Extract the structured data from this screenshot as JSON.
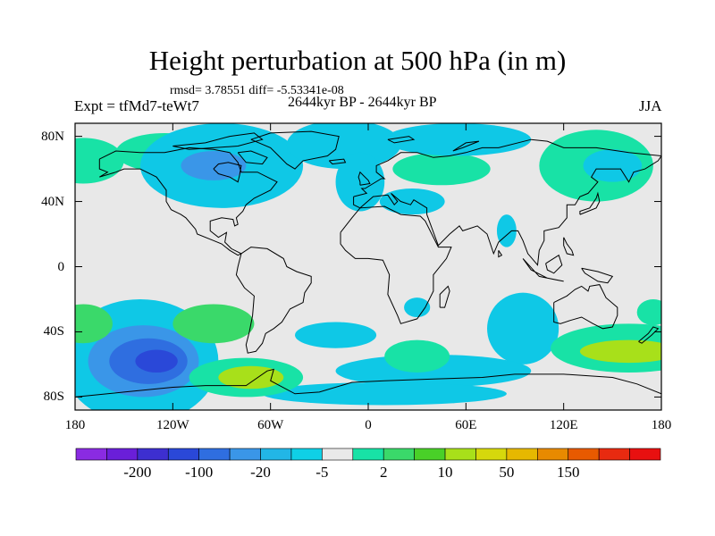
{
  "title": "Height perturbation at 500 hPa (in m)",
  "stats": "rmsd= 3.78551 diff= -5.53341e-08",
  "experiment": "Expt = tfMd7-teWt7",
  "period": "2644kyr BP - 2644kyr BP",
  "season": "JJA",
  "lat_labels": [
    {
      "text": "80N",
      "lat": 80
    },
    {
      "text": "40N",
      "lat": 40
    },
    {
      "text": "0",
      "lat": 0
    },
    {
      "text": "40S",
      "lat": -40
    },
    {
      "text": "80S",
      "lat": -80
    }
  ],
  "lon_labels": [
    {
      "text": "180",
      "lon": -180
    },
    {
      "text": "120W",
      "lon": -120
    },
    {
      "text": "60W",
      "lon": -60
    },
    {
      "text": "0",
      "lon": 0
    },
    {
      "text": "60E",
      "lon": 60
    },
    {
      "text": "120E",
      "lon": 120
    },
    {
      "text": "180",
      "lon": 180
    }
  ],
  "colorbar": {
    "colors": [
      "#8a2be2",
      "#6a1fd9",
      "#3d2fd0",
      "#2a48d8",
      "#2f6ee0",
      "#3a96e8",
      "#22b6e6",
      "#0fd0e6",
      "#e9e9e9",
      "#18e2a6",
      "#3ad96a",
      "#49d028",
      "#a8e01a",
      "#d6d80c",
      "#e6b800",
      "#e88a00",
      "#e85a00",
      "#e82a10",
      "#e81010"
    ],
    "labels": [
      {
        "text": "-200",
        "boundary": 2
      },
      {
        "text": "-100",
        "boundary": 4
      },
      {
        "text": "-20",
        "boundary": 6
      },
      {
        "text": "-5",
        "boundary": 8
      },
      {
        "text": "2",
        "boundary": 10
      },
      {
        "text": "10",
        "boundary": 12
      },
      {
        "text": "50",
        "boundary": 14
      },
      {
        "text": "150",
        "boundary": 16
      }
    ]
  },
  "fill_colors": {
    "background": "#e8e8e8",
    "cyan": "#0fc8e6",
    "teal": "#18e2a6",
    "green": "#3ad96a",
    "lime": "#a8e01a",
    "blue1": "#3a96e8",
    "blue2": "#2f6ee0",
    "blue3": "#2a48d8",
    "coast": "#000000"
  },
  "anomaly_regions": [
    {
      "name": "green-band-north",
      "level": "teal",
      "lon": -175,
      "lat": 65,
      "rlon": 25,
      "rlat": 14
    },
    {
      "name": "green-east-asia",
      "level": "teal",
      "lon": 140,
      "lat": 62,
      "rlon": 35,
      "rlat": 22
    },
    {
      "name": "green-europe",
      "level": "teal",
      "lon": 45,
      "lat": 60,
      "rlon": 30,
      "rlat": 10
    },
    {
      "name": "green-mid-pacific",
      "level": "teal",
      "lon": -125,
      "lat": 70,
      "rlon": 30,
      "rlat": 12
    },
    {
      "name": "cyan-canada",
      "level": "cyan",
      "lon": -90,
      "lat": 62,
      "rlon": 50,
      "rlat": 26
    },
    {
      "name": "cyan-canada-core",
      "level": "blue1",
      "lon": -95,
      "lat": 62,
      "rlon": 20,
      "rlat": 9
    },
    {
      "name": "cyan-greenland",
      "level": "cyan",
      "lon": -15,
      "lat": 75,
      "rlon": 35,
      "rlat": 15
    },
    {
      "name": "cyan-atlantic",
      "level": "cyan",
      "lon": -5,
      "lat": 52,
      "rlon": 15,
      "rlat": 18
    },
    {
      "name": "cyan-russia",
      "level": "cyan",
      "lon": 55,
      "lat": 78,
      "rlon": 45,
      "rlat": 10
    },
    {
      "name": "cyan-siberia",
      "level": "cyan",
      "lon": 150,
      "lat": 62,
      "rlon": 18,
      "rlat": 10
    },
    {
      "name": "cyan-med",
      "level": "cyan",
      "lon": 27,
      "lat": 40,
      "rlon": 20,
      "rlat": 8
    },
    {
      "name": "cyan-india",
      "level": "cyan",
      "lon": 85,
      "lat": 22,
      "rlon": 6,
      "rlat": 10
    },
    {
      "name": "cyan-south-atlantic",
      "level": "cyan",
      "lon": -20,
      "lat": -42,
      "rlon": 25,
      "rlat": 8
    },
    {
      "name": "cyan-africa-south",
      "level": "cyan",
      "lon": 30,
      "lat": -25,
      "rlon": 8,
      "rlat": 6
    },
    {
      "name": "cyan-indian-ocean",
      "level": "cyan",
      "lon": 95,
      "lat": -38,
      "rlon": 22,
      "rlat": 22
    },
    {
      "name": "cyan-south-band",
      "level": "cyan",
      "lon": 40,
      "lat": -64,
      "rlon": 60,
      "rlat": 10
    },
    {
      "name": "cyan-antarctic",
      "level": "cyan",
      "lon": 10,
      "lat": -78,
      "rlon": 75,
      "rlat": 7
    },
    {
      "name": "cyan-west-pacific",
      "level": "cyan",
      "lon": -140,
      "lat": -58,
      "rlon": 48,
      "rlat": 38
    },
    {
      "name": "blue-pacific-1",
      "level": "blue1",
      "lon": -138,
      "lat": -58,
      "rlon": 34,
      "rlat": 22
    },
    {
      "name": "blue-pacific-2",
      "level": "blue2",
      "lon": -135,
      "lat": -58,
      "rlon": 24,
      "rlat": 14
    },
    {
      "name": "blue-pacific-3",
      "level": "blue3",
      "lon": -130,
      "lat": -58,
      "rlon": 13,
      "rlat": 7
    },
    {
      "name": "green-nz",
      "level": "green",
      "lon": -175,
      "lat": -35,
      "rlon": 18,
      "rlat": 12
    },
    {
      "name": "green-sw-pacific",
      "level": "green",
      "lon": -95,
      "lat": -35,
      "rlon": 25,
      "rlat": 12
    },
    {
      "name": "green-south-america",
      "level": "teal",
      "lon": -75,
      "lat": -68,
      "rlon": 35,
      "rlat": 12
    },
    {
      "name": "green-south-america-core",
      "level": "lime",
      "lon": -72,
      "lat": -68,
      "rlon": 20,
      "rlat": 7
    },
    {
      "name": "green-south-indian",
      "level": "teal",
      "lon": 160,
      "lat": -50,
      "rlon": 48,
      "rlat": 15
    },
    {
      "name": "green-south-indian-core",
      "level": "lime",
      "lon": 160,
      "lat": -52,
      "rlon": 30,
      "rlat": 7
    },
    {
      "name": "green-southeast-pacific",
      "level": "teal",
      "lon": 175,
      "lat": -28,
      "rlon": 10,
      "rlat": 8
    },
    {
      "name": "green-north-africa",
      "level": "teal",
      "lon": 30,
      "lat": -55,
      "rlon": 20,
      "rlat": 10
    }
  ],
  "coastlines": [
    {
      "name": "north-america",
      "lonlat": [
        -165,
        66,
        -155,
        71,
        -140,
        70,
        -125,
        70,
        -110,
        73,
        -95,
        72,
        -85,
        70,
        -80,
        64,
        -78,
        58,
        -68,
        58,
        -62,
        55,
        -56,
        52,
        -60,
        47,
        -66,
        44,
        -70,
        42,
        -75,
        38,
        -77,
        34,
        -81,
        30,
        -80,
        26,
        -82,
        25,
        -83,
        29,
        -90,
        30,
        -97,
        28,
        -97,
        22,
        -92,
        18,
        -87,
        21,
        -88,
        15,
        -84,
        11,
        -80,
        9,
        -78,
        8,
        -80,
        7,
        -85,
        10,
        -90,
        14,
        -95,
        16,
        -105,
        20,
        -106,
        23,
        -112,
        30,
        -115,
        32,
        -117,
        33,
        -121,
        35,
        -124,
        40,
        -124,
        47,
        -130,
        55,
        -140,
        60,
        -150,
        60,
        -155,
        58,
        -165,
        55,
        -160,
        58,
        -165,
        60,
        -165,
        66
      ]
    },
    {
      "name": "greenland",
      "lonlat": [
        -72,
        78,
        -60,
        82,
        -35,
        83,
        -18,
        80,
        -20,
        72,
        -25,
        68,
        -40,
        65,
        -45,
        60,
        -50,
        63,
        -55,
        68,
        -60,
        73,
        -72,
        78
      ]
    },
    {
      "name": "south-america",
      "lonlat": [
        -78,
        8,
        -72,
        12,
        -62,
        11,
        -52,
        5,
        -50,
        0,
        -44,
        -3,
        -35,
        -6,
        -35,
        -10,
        -39,
        -16,
        -40,
        -22,
        -48,
        -26,
        -53,
        -34,
        -58,
        -38,
        -63,
        -41,
        -65,
        -47,
        -69,
        -52,
        -74,
        -53,
        -75,
        -48,
        -73,
        -40,
        -71,
        -30,
        -70,
        -18,
        -76,
        -13,
        -81,
        -5,
        -80,
        0,
        -78,
        8
      ]
    },
    {
      "name": "africa",
      "lonlat": [
        -17,
        21,
        -10,
        30,
        -5,
        36,
        10,
        37,
        20,
        32,
        32,
        31,
        35,
        28,
        43,
        12,
        51,
        12,
        48,
        5,
        40,
        -5,
        40,
        -15,
        35,
        -25,
        30,
        -32,
        20,
        -35,
        18,
        -30,
        12,
        -17,
        13,
        -5,
        9,
        4,
        0,
        5,
        -8,
        5,
        -14,
        10,
        -17,
        14,
        -17,
        21
      ]
    },
    {
      "name": "eurasia",
      "lonlat": [
        -9,
        43,
        -9,
        38,
        -5,
        36,
        3,
        43,
        12,
        44,
        16,
        38,
        18,
        40,
        14,
        45,
        20,
        40,
        26,
        38,
        28,
        41,
        36,
        36,
        36,
        32,
        43,
        13,
        50,
        20,
        56,
        25,
        58,
        22,
        67,
        25,
        73,
        20,
        77,
        8,
        80,
        15,
        88,
        22,
        92,
        22,
        95,
        16,
        98,
        8,
        104,
        1,
        105,
        10,
        108,
        16,
        108,
        22,
        117,
        24,
        122,
        30,
        122,
        38,
        127,
        38,
        130,
        43,
        135,
        45,
        141,
        52,
        137,
        55,
        140,
        60,
        155,
        60,
        160,
        52,
        163,
        58,
        170,
        60,
        178,
        65,
        180,
        68,
        160,
        70,
        140,
        73,
        120,
        73,
        110,
        77,
        100,
        78,
        80,
        73,
        70,
        73,
        60,
        70,
        50,
        68,
        40,
        67,
        30,
        70,
        20,
        70,
        12,
        65,
        5,
        62,
        5,
        58,
        10,
        54,
        8,
        54,
        3,
        51,
        -2,
        48,
        -4,
        48,
        -1,
        45,
        -9,
        43
      ]
    },
    {
      "name": "uk",
      "lonlat": [
        -5,
        50,
        1,
        51,
        0,
        53,
        -3,
        56,
        -5,
        58,
        -6,
        55,
        -5,
        52,
        -5,
        50
      ]
    },
    {
      "name": "australia",
      "lonlat": [
        114,
        -22,
        114,
        -34,
        118,
        -35,
        124,
        -33,
        131,
        -31,
        138,
        -35,
        144,
        -38,
        150,
        -37,
        153,
        -30,
        153,
        -25,
        146,
        -19,
        142,
        -11,
        136,
        -12,
        135,
        -15,
        131,
        -12,
        127,
        -14,
        122,
        -18,
        114,
        -22
      ]
    },
    {
      "name": "antarctica",
      "lonlat": [
        -180,
        -80,
        -150,
        -77,
        -120,
        -74,
        -100,
        -73,
        -75,
        -73,
        -62,
        -64,
        -58,
        -63,
        -60,
        -70,
        -45,
        -78,
        -30,
        -77,
        -10,
        -71,
        10,
        -70,
        40,
        -69,
        70,
        -68,
        90,
        -66,
        120,
        -66,
        150,
        -68,
        165,
        -72,
        180,
        -78
      ]
    },
    {
      "name": "madagascar",
      "lonlat": [
        44,
        -25,
        47,
        -25,
        50,
        -15,
        49,
        -12,
        44,
        -17,
        44,
        -25
      ]
    },
    {
      "name": "japan",
      "lonlat": [
        130,
        32,
        135,
        34,
        140,
        36,
        142,
        40,
        141,
        45,
        140,
        42,
        136,
        36,
        130,
        34,
        130,
        32
      ]
    },
    {
      "name": "new-zealand",
      "lonlat": [
        166,
        -46,
        172,
        -41,
        175,
        -37,
        178,
        -38,
        174,
        -42,
        168,
        -47,
        166,
        -46
      ]
    },
    {
      "name": "indonesia",
      "lonlat": [
        95,
        5,
        105,
        -6,
        115,
        -8,
        120,
        -9,
        110,
        -7,
        100,
        -2,
        95,
        5
      ]
    },
    {
      "name": "borneo",
      "lonlat": [
        109,
        2,
        117,
        7,
        119,
        1,
        114,
        -4,
        110,
        -2,
        109,
        2
      ]
    },
    {
      "name": "new-guinea",
      "lonlat": [
        131,
        -1,
        141,
        -3,
        150,
        -6,
        147,
        -10,
        141,
        -9,
        133,
        -4,
        131,
        -1
      ]
    },
    {
      "name": "iceland",
      "lonlat": [
        -24,
        65,
        -15,
        66,
        -14,
        64,
        -22,
        63,
        -24,
        65
      ]
    },
    {
      "name": "svalbard",
      "lonlat": [
        12,
        78,
        25,
        80,
        28,
        78,
        16,
        76,
        12,
        78
      ]
    },
    {
      "name": "novaya-zemlya",
      "lonlat": [
        52,
        71,
        60,
        76,
        68,
        77,
        58,
        73,
        52,
        71
      ]
    },
    {
      "name": "hudson-bay",
      "lonlat": [
        -95,
        60,
        -92,
        57,
        -85,
        55,
        -80,
        52,
        -79,
        56,
        -78,
        62,
        -86,
        64,
        -92,
        63,
        -95,
        60
      ]
    },
    {
      "name": "arctic-islands",
      "lonlat": [
        -120,
        74,
        -100,
        76,
        -85,
        80,
        -70,
        82,
        -65,
        78,
        -80,
        74,
        -95,
        73,
        -110,
        72,
        -120,
        74
      ]
    },
    {
      "name": "baffin",
      "lonlat": [
        -80,
        70,
        -72,
        71,
        -62,
        67,
        -65,
        63,
        -75,
        64,
        -80,
        70
      ]
    },
    {
      "name": "sri-lanka",
      "lonlat": [
        80,
        10,
        82,
        7,
        80,
        6,
        80,
        10
      ]
    },
    {
      "name": "philippines",
      "lonlat": [
        120,
        18,
        122,
        14,
        125,
        10,
        126,
        7,
        122,
        8,
        120,
        13,
        120,
        18
      ]
    }
  ]
}
